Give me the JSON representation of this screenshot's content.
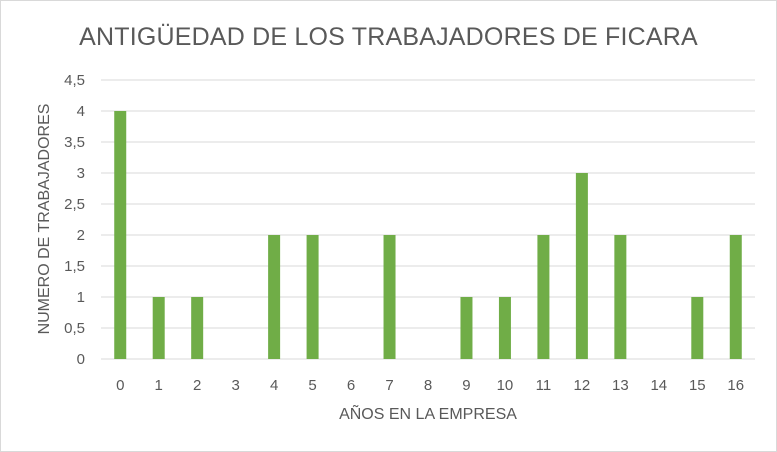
{
  "chart_data": {
    "type": "bar",
    "title": "ANTIGÜEDAD DE LOS TRABAJADORES DE FICARA",
    "xlabel": "AÑOS EN LA EMPRESA",
    "ylabel": "NUMERO DE TRABAJADORES",
    "categories": [
      "0",
      "1",
      "2",
      "3",
      "4",
      "5",
      "6",
      "7",
      "8",
      "9",
      "10",
      "11",
      "12",
      "13",
      "14",
      "15",
      "16"
    ],
    "values": [
      4,
      1,
      1,
      0,
      2,
      2,
      0,
      2,
      0,
      1,
      1,
      2,
      3,
      2,
      0,
      1,
      2
    ],
    "ylim": [
      0,
      4.5
    ],
    "yticks": [
      "0",
      "0,5",
      "1",
      "1,5",
      "2",
      "2,5",
      "3",
      "3,5",
      "4",
      "4,5"
    ],
    "grid": true,
    "bar_color": "#70ad47",
    "grid_color": "#d9d9d9",
    "text_color": "#595959"
  }
}
